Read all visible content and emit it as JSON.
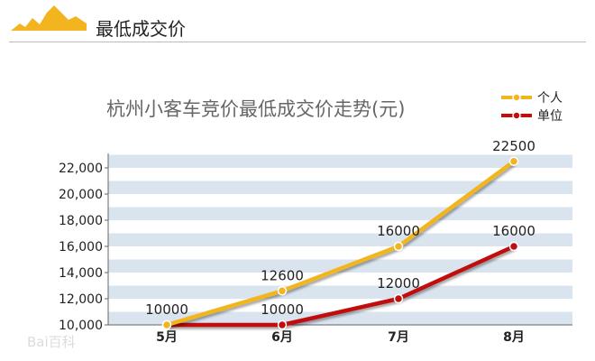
{
  "header": {
    "title": "最低成交价",
    "accent_color": "#f2b51f",
    "icon": "mountain-icon"
  },
  "chart_data": {
    "type": "line",
    "title": "杭州小客车竞价最低成交价走势(元)",
    "categories": [
      "5月",
      "6月",
      "7月",
      "8月"
    ],
    "series": [
      {
        "name": "个人",
        "color": "#f2b51f",
        "values": [
          10000,
          12600,
          16000,
          22500
        ],
        "labels": [
          "10000",
          "12600",
          "16000",
          "22500"
        ]
      },
      {
        "name": "单位",
        "color": "#c00d0d",
        "values": [
          10000,
          10000,
          12000,
          16000
        ],
        "labels": [
          "",
          "10000",
          "12000",
          "16000"
        ]
      }
    ],
    "yticks": [
      "10,000",
      "12,000",
      "14,000",
      "16,000",
      "18,000",
      "20,000",
      "22,000"
    ],
    "ylim": [
      10000,
      23000
    ],
    "legend_position": "top-right",
    "grid": "horizontal-bands",
    "band_color": "#d9e4ef"
  },
  "watermark": {
    "text": "Bai百科"
  }
}
